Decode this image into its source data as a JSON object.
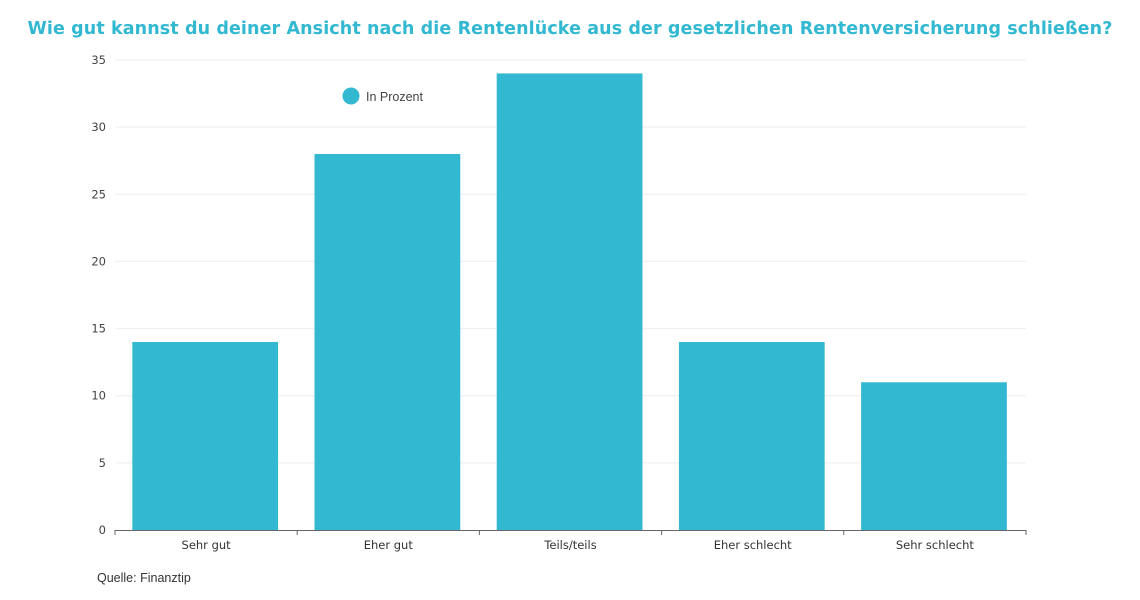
{
  "chart_data": {
    "type": "bar",
    "title": "Wie gut kannst du deiner Ansicht nach die Rentenlücke aus der gesetzlichen Rentenversicherung schließen?",
    "categories": [
      "Sehr gut",
      "Eher gut",
      "Teils/teils",
      "Eher schlecht",
      "Sehr schlecht"
    ],
    "series": [
      {
        "name": "In Prozent",
        "values": [
          14,
          28,
          34,
          14,
          11
        ],
        "color": "#32b8d0"
      }
    ],
    "xlabel": "",
    "ylabel": "",
    "ylim": [
      0,
      35
    ],
    "yticks": [
      0,
      5,
      10,
      15,
      20,
      25,
      30,
      35
    ],
    "grid": true,
    "legend": "top-left",
    "source": "Quelle: Finanztip"
  }
}
